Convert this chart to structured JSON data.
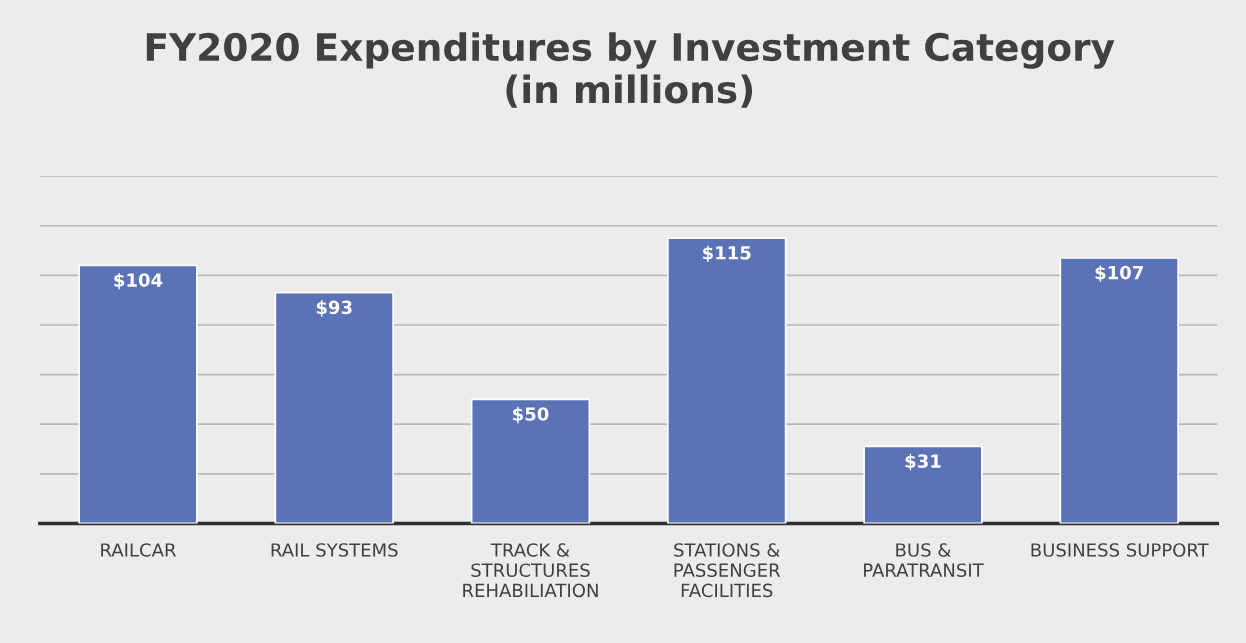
{
  "chart_data": {
    "type": "bar",
    "title": "FY2020 Expenditures by Investment Category\n(in millions)",
    "categories": [
      "RAILCAR",
      "RAIL SYSTEMS",
      "TRACK &\nSTRUCTURES\nREHABILIATION",
      "STATIONS &\nPASSENGER\nFACILITIES",
      "BUS &\nPARATRANSIT",
      "BUSINESS SUPPORT"
    ],
    "values": [
      104,
      93,
      50,
      115,
      31,
      107
    ],
    "value_labels": [
      "$104",
      "$93",
      "$50",
      "$115",
      "$31",
      "$107"
    ],
    "color": "#5b72b6",
    "ylim": [
      0,
      140
    ],
    "yticks": [
      {
        "value": 0,
        "label": null
      },
      {
        "value": 20,
        "label": null
      },
      {
        "value": 40,
        "label": null
      },
      {
        "value": 60,
        "label": null
      },
      {
        "value": 80,
        "label": null
      },
      {
        "value": 100,
        "label": null
      },
      {
        "value": 120,
        "label": null
      },
      {
        "value": 140,
        "label": null
      }
    ],
    "grid": "y",
    "tick_labels": "x"
  }
}
